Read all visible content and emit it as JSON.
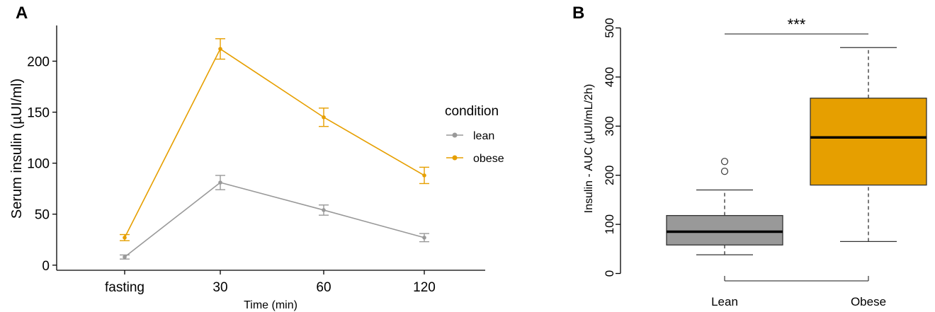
{
  "chart_data": [
    {
      "panel": "A",
      "type": "line",
      "xlabel": "Time (min)",
      "ylabel": "Serum insulin (µUI/ml)",
      "categories": [
        "fasting",
        "30",
        "60",
        "120"
      ],
      "ylim": [
        -5,
        235
      ],
      "yticks": [
        0,
        50,
        100,
        150,
        200
      ],
      "grid": false,
      "legend": {
        "title": "condition",
        "position": "right"
      },
      "series": [
        {
          "name": "lean",
          "color": "#999999",
          "values": [
            8,
            81,
            54,
            27
          ],
          "err": [
            2,
            7,
            5,
            4
          ]
        },
        {
          "name": "obese",
          "color": "#E69F00",
          "values": [
            27,
            212,
            145,
            88
          ],
          "err": [
            3,
            10,
            9,
            8
          ]
        }
      ]
    },
    {
      "panel": "B",
      "type": "box",
      "ylabel": "Insulin - AUC (µUI/mL/2h)",
      "categories": [
        "Lean",
        "Obese"
      ],
      "ylim": [
        -5,
        505
      ],
      "yticks": [
        0,
        100,
        200,
        300,
        400,
        500
      ],
      "grid": false,
      "boxes": [
        {
          "name": "Lean",
          "color": "#999999",
          "whisker_low": 38,
          "q1": 58,
          "median": 85,
          "q3": 118,
          "whisker_high": 170,
          "outliers": [
            208,
            228
          ]
        },
        {
          "name": "Obese",
          "color": "#E69F00",
          "whisker_low": 65,
          "q1": 180,
          "median": 277,
          "q3": 357,
          "whisker_high": 460,
          "outliers": []
        }
      ],
      "significance": "***"
    }
  ]
}
